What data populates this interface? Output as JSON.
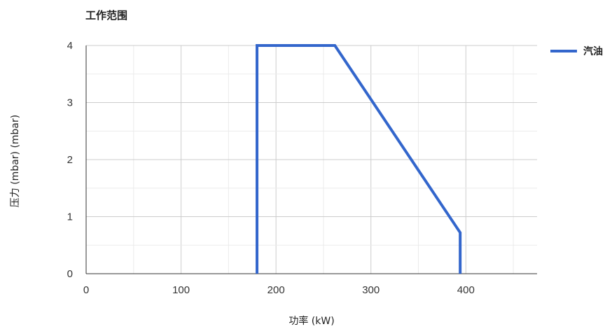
{
  "chart_data": {
    "type": "line",
    "title": "工作范围",
    "xlabel": "功率 (kW)",
    "ylabel": "压力 (mbar) (mbar)",
    "xlim": [
      0,
      475
    ],
    "ylim": [
      0,
      4
    ],
    "x_ticks": [
      0,
      100,
      200,
      300,
      400
    ],
    "y_ticks": [
      0,
      1,
      2,
      3,
      4
    ],
    "grid": true,
    "legend_position": "top-right",
    "series": [
      {
        "name": "汽油",
        "color": "#3366cc",
        "points": [
          {
            "x": 180,
            "y": 0
          },
          {
            "x": 180,
            "y": 4
          },
          {
            "x": 262,
            "y": 4
          },
          {
            "x": 394,
            "y": 0.72
          },
          {
            "x": 394,
            "y": 0
          }
        ]
      }
    ]
  }
}
